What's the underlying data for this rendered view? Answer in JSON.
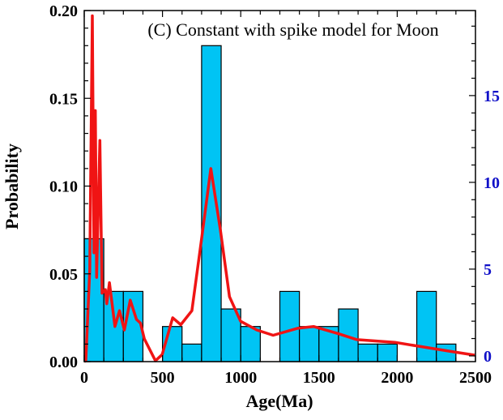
{
  "chart_data": {
    "type": "bar",
    "title": "(C) Constant with spike model for Moon",
    "xlabel": "Age(Ma)",
    "ylabel": "Probability",
    "xlim": [
      0,
      2500
    ],
    "ylim": [
      0,
      0.2
    ],
    "y2lim": [
      -0.33,
      19.9
    ],
    "grid": false,
    "x_ticks": [
      "0",
      "500",
      "1000",
      "1500",
      "2000",
      "2500"
    ],
    "y_ticks": [
      "0.00",
      "0.05",
      "0.10",
      "0.15",
      "0.20"
    ],
    "y2_ticks": [
      "0",
      "5",
      "10",
      "15"
    ],
    "bin_width": 125,
    "bins": [
      {
        "start": 0,
        "value": 0.07
      },
      {
        "start": 125,
        "value": 0.04
      },
      {
        "start": 250,
        "value": 0.04
      },
      {
        "start": 500,
        "value": 0.02
      },
      {
        "start": 625,
        "value": 0.01
      },
      {
        "start": 750,
        "value": 0.18
      },
      {
        "start": 875,
        "value": 0.03
      },
      {
        "start": 1000,
        "value": 0.02
      },
      {
        "start": 1250,
        "value": 0.04
      },
      {
        "start": 1375,
        "value": 0.02
      },
      {
        "start": 1500,
        "value": 0.02
      },
      {
        "start": 1625,
        "value": 0.03
      },
      {
        "start": 1750,
        "value": 0.01
      },
      {
        "start": 1875,
        "value": 0.01
      },
      {
        "start": 2125,
        "value": 0.04
      },
      {
        "start": 2250,
        "value": 0.01
      }
    ],
    "curve": [
      [
        0,
        0
      ],
      [
        10,
        0.0005
      ],
      [
        35,
        0.052
      ],
      [
        52,
        0.197
      ],
      [
        62,
        0.062
      ],
      [
        71,
        0.143
      ],
      [
        79,
        0.048
      ],
      [
        100,
        0.126
      ],
      [
        114,
        0.039
      ],
      [
        135,
        0.041
      ],
      [
        144,
        0.033
      ],
      [
        161,
        0.045
      ],
      [
        196,
        0.02
      ],
      [
        225,
        0.029
      ],
      [
        256,
        0.018
      ],
      [
        294,
        0.035
      ],
      [
        334,
        0.024
      ],
      [
        359,
        0.022
      ],
      [
        384,
        0.013
      ],
      [
        455,
        0.0005
      ],
      [
        498,
        0.004
      ],
      [
        565,
        0.025
      ],
      [
        617,
        0.021
      ],
      [
        688,
        0.029
      ],
      [
        747,
        0.068
      ],
      [
        809,
        0.11
      ],
      [
        870,
        0.075
      ],
      [
        928,
        0.037
      ],
      [
        999,
        0.023
      ],
      [
        1103,
        0.018
      ],
      [
        1207,
        0.015
      ],
      [
        1363,
        0.019
      ],
      [
        1466,
        0.02
      ],
      [
        1622,
        0.016
      ],
      [
        1743,
        0.0125
      ],
      [
        1985,
        0.011
      ],
      [
        2121,
        0.009
      ],
      [
        2329,
        0.006
      ],
      [
        2495,
        0.0037
      ]
    ],
    "colors": {
      "bar": "#00c4f4",
      "curve": "#f01414",
      "right_axis": "#1010c8",
      "axis": "#000000"
    }
  }
}
